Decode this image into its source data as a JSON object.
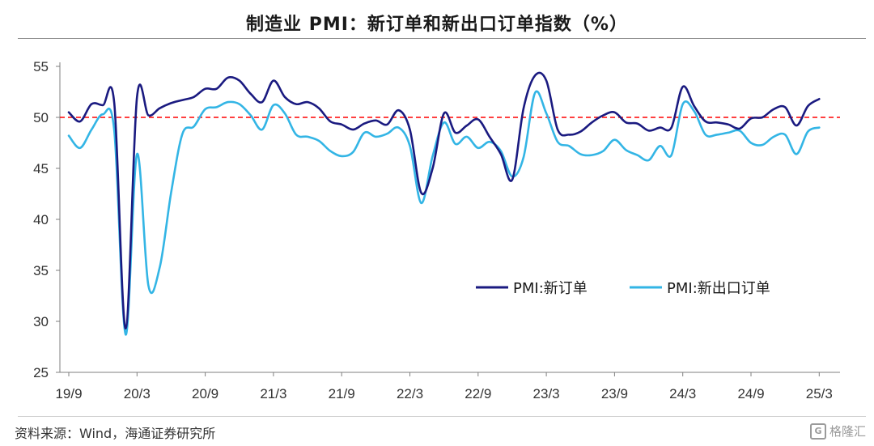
{
  "title": "制造业 PMI：新订单和新出口订单指数（%）",
  "source": "资料来源：Wind，海通证券研究所",
  "watermark": {
    "text": "格隆汇",
    "icon": "G"
  },
  "colors": {
    "series_dark": "#1a1a80",
    "series_light": "#33b5e5",
    "reference": "#ff0000"
  },
  "chart_data": {
    "type": "line",
    "y_range": [
      25,
      55
    ],
    "y_ticks": [
      25,
      30,
      35,
      40,
      45,
      50,
      55
    ],
    "x_ticks": [
      "19/9",
      "20/3",
      "20/9",
      "21/3",
      "21/9",
      "22/3",
      "22/9",
      "23/3",
      "23/9",
      "24/3",
      "24/9",
      "25/3"
    ],
    "reference_line": {
      "value": 50,
      "style": "dashed"
    },
    "legend_position": "right-middle",
    "x_categories": [
      "19/9",
      "19/10",
      "19/11",
      "19/12",
      "20/1",
      "20/2",
      "20/3",
      "20/4",
      "20/5",
      "20/6",
      "20/7",
      "20/8",
      "20/9",
      "20/10",
      "20/11",
      "20/12",
      "21/1",
      "21/2",
      "21/3",
      "21/4",
      "21/5",
      "21/6",
      "21/7",
      "21/8",
      "21/9",
      "21/10",
      "21/11",
      "21/12",
      "22/1",
      "22/2",
      "22/3",
      "22/4",
      "22/5",
      "22/6",
      "22/7",
      "22/8",
      "22/9",
      "22/10",
      "22/11",
      "22/12",
      "23/1",
      "23/2",
      "23/3",
      "23/4",
      "23/5",
      "23/6",
      "23/7",
      "23/8",
      "23/9",
      "23/10",
      "23/11",
      "23/12",
      "24/1",
      "24/2",
      "24/3",
      "24/4",
      "24/5",
      "24/6",
      "24/7",
      "24/8",
      "24/9",
      "24/10",
      "24/11",
      "24/12",
      "25/1",
      "25/2",
      "25/3"
    ],
    "series": [
      {
        "name": "PMI:新订单",
        "values": [
          50.5,
          49.6,
          51.3,
          51.2,
          51.4,
          29.3,
          52.0,
          50.2,
          50.9,
          51.4,
          51.7,
          52.0,
          52.8,
          52.8,
          53.9,
          53.6,
          52.3,
          51.5,
          53.6,
          52.0,
          51.3,
          51.5,
          50.9,
          49.6,
          49.3,
          48.8,
          49.4,
          49.7,
          49.3,
          50.7,
          48.8,
          42.6,
          45.0,
          50.4,
          48.5,
          49.2,
          49.8,
          48.1,
          46.4,
          43.9,
          50.9,
          54.1,
          53.6,
          48.8,
          48.3,
          48.6,
          49.5,
          50.2,
          50.5,
          49.5,
          49.4,
          48.7,
          49.0,
          49.0,
          53.0,
          51.1,
          49.6,
          49.5,
          49.3,
          48.9,
          49.9,
          50.0,
          50.8,
          51.0,
          49.2,
          51.1,
          51.8
        ]
      },
      {
        "name": "PMI:新出口订单",
        "values": [
          48.2,
          47.0,
          48.8,
          50.3,
          48.7,
          28.7,
          46.4,
          33.5,
          35.3,
          42.6,
          48.4,
          49.1,
          50.8,
          51.0,
          51.5,
          51.3,
          50.2,
          48.8,
          51.2,
          50.4,
          48.3,
          48.1,
          47.7,
          46.7,
          46.2,
          46.6,
          48.5,
          48.1,
          48.4,
          49.0,
          47.2,
          41.6,
          46.2,
          49.5,
          47.4,
          48.1,
          47.0,
          47.6,
          46.7,
          44.2,
          46.1,
          52.4,
          50.4,
          47.6,
          47.2,
          46.4,
          46.3,
          46.7,
          47.8,
          46.8,
          46.3,
          45.8,
          47.2,
          46.3,
          51.3,
          50.6,
          48.3,
          48.3,
          48.5,
          48.7,
          47.5,
          47.3,
          48.1,
          48.3,
          46.4,
          48.6,
          49.0
        ]
      }
    ]
  }
}
